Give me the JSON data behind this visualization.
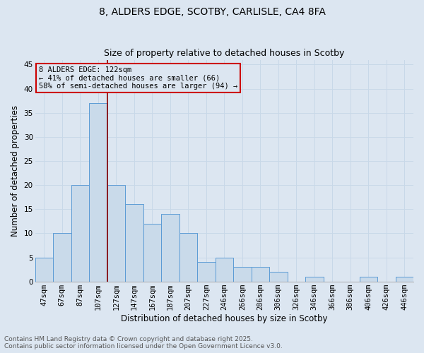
{
  "title1": "8, ALDERS EDGE, SCOTBY, CARLISLE, CA4 8FA",
  "title2": "Size of property relative to detached houses in Scotby",
  "xlabel": "Distribution of detached houses by size in Scotby",
  "ylabel": "Number of detached properties",
  "bar_labels": [
    "47sqm",
    "67sqm",
    "87sqm",
    "107sqm",
    "127sqm",
    "147sqm",
    "167sqm",
    "187sqm",
    "207sqm",
    "227sqm",
    "246sqm",
    "266sqm",
    "286sqm",
    "306sqm",
    "326sqm",
    "346sqm",
    "366sqm",
    "386sqm",
    "406sqm",
    "426sqm",
    "446sqm"
  ],
  "bar_values": [
    5,
    10,
    20,
    37,
    20,
    16,
    12,
    14,
    10,
    4,
    5,
    3,
    3,
    2,
    0,
    1,
    0,
    0,
    1,
    0,
    1
  ],
  "bar_color": "#c9daea",
  "bar_edge_color": "#5b9bd5",
  "grid_color": "#c8d8e8",
  "background_color": "#dce6f1",
  "vline_x": 3.5,
  "vline_color": "#8b0000",
  "annotation_text": "8 ALDERS EDGE: 122sqm\n← 41% of detached houses are smaller (66)\n58% of semi-detached houses are larger (94) →",
  "annotation_box_color": "#cc0000",
  "ylim": [
    0,
    46
  ],
  "yticks": [
    0,
    5,
    10,
    15,
    20,
    25,
    30,
    35,
    40,
    45
  ],
  "footnote1": "Contains HM Land Registry data © Crown copyright and database right 2025.",
  "footnote2": "Contains public sector information licensed under the Open Government Licence v3.0.",
  "title1_fontsize": 10,
  "title2_fontsize": 9,
  "axis_fontsize": 8.5,
  "tick_fontsize": 7.5,
  "annot_fontsize": 7.5,
  "footnote_fontsize": 6.5
}
